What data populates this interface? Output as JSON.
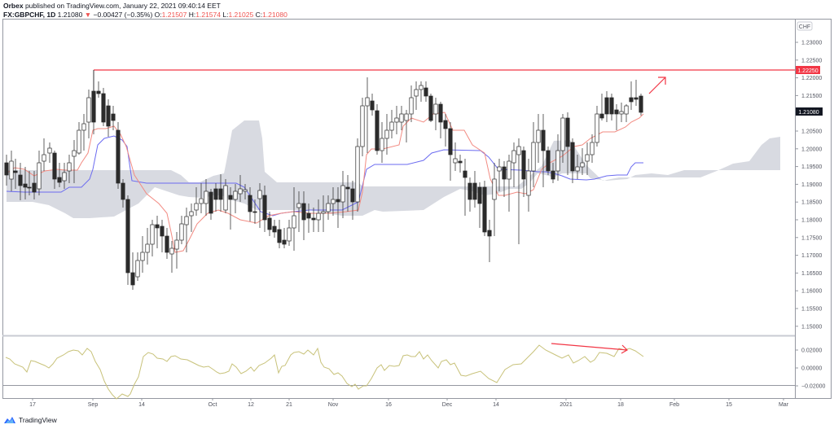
{
  "header": {
    "publisher": "Orbex",
    "published_text": " published on TradingView.com, January 22, 2021 09:40:14 EET",
    "symbol": "FX:GBPCHF, 1D",
    "last": "1.21080",
    "change": "−0.00427 (−0.35%)",
    "open_label": "O:",
    "open": "1.21507",
    "high_label": "H:",
    "high": "1.21574",
    "low_label": "L:",
    "low": "1.21025",
    "close_label": "C:",
    "close": "1.21080"
  },
  "price_axis": {
    "currency_badge": "CHF",
    "resistance_label": "1.22250",
    "last_price_label": "1.21080",
    "ticks": [
      "1.23000",
      "1.22500",
      "1.22000",
      "1.21500",
      "1.21000",
      "1.20500",
      "1.20000",
      "1.19500",
      "1.19000",
      "1.18500",
      "1.18000",
      "1.17500",
      "1.17000",
      "1.16500",
      "1.16000",
      "1.15500",
      "1.15000"
    ]
  },
  "indicator_axis": {
    "ticks": [
      "0.02000",
      "0.00000",
      "−0.02000"
    ]
  },
  "time_axis": {
    "ticks": [
      "17",
      "Sep",
      "14",
      "Oct",
      "12",
      "21",
      "Nov",
      "16",
      "Dec",
      "14",
      "2021",
      "18",
      "Feb",
      "15",
      "Mar"
    ]
  },
  "footer": {
    "brand": "TradingView"
  },
  "colors": {
    "resistance": "#f23645",
    "tenkan": "#f28b82",
    "kijun": "#6b6bf0",
    "cloud": "#d1d4dc",
    "oscillator": "#c8c27a",
    "bear_candle": "#2b2b2b",
    "bull_candle": "#ffffff"
  },
  "chart_data": [
    {
      "type": "candlestick",
      "title": "FX:GBPCHF, 1D",
      "ylabel": "CHF",
      "ylim": [
        1.148,
        1.234
      ],
      "xrange": [
        "Aug 2020",
        "Mar 2021"
      ],
      "annotations": [
        {
          "type": "horizontal_line",
          "value": 1.2225,
          "color": "#f23645",
          "label": "1.22250"
        },
        {
          "type": "arrow",
          "direction": "up-right",
          "note": "bullish continuation toward resistance"
        }
      ],
      "indicators": [
        "Ichimoku Cloud (Tenkan red, Kijun blue, Kumo gray)"
      ],
      "last_close": 1.2108
    },
    {
      "type": "line",
      "title": "Oscillator (momentum)",
      "ylim": [
        -0.03,
        0.03
      ],
      "yticks": [
        0.02,
        0.0,
        -0.02
      ],
      "annotations": [
        {
          "type": "arrow",
          "direction": "down-right",
          "note": "bearish divergence"
        }
      ]
    }
  ]
}
